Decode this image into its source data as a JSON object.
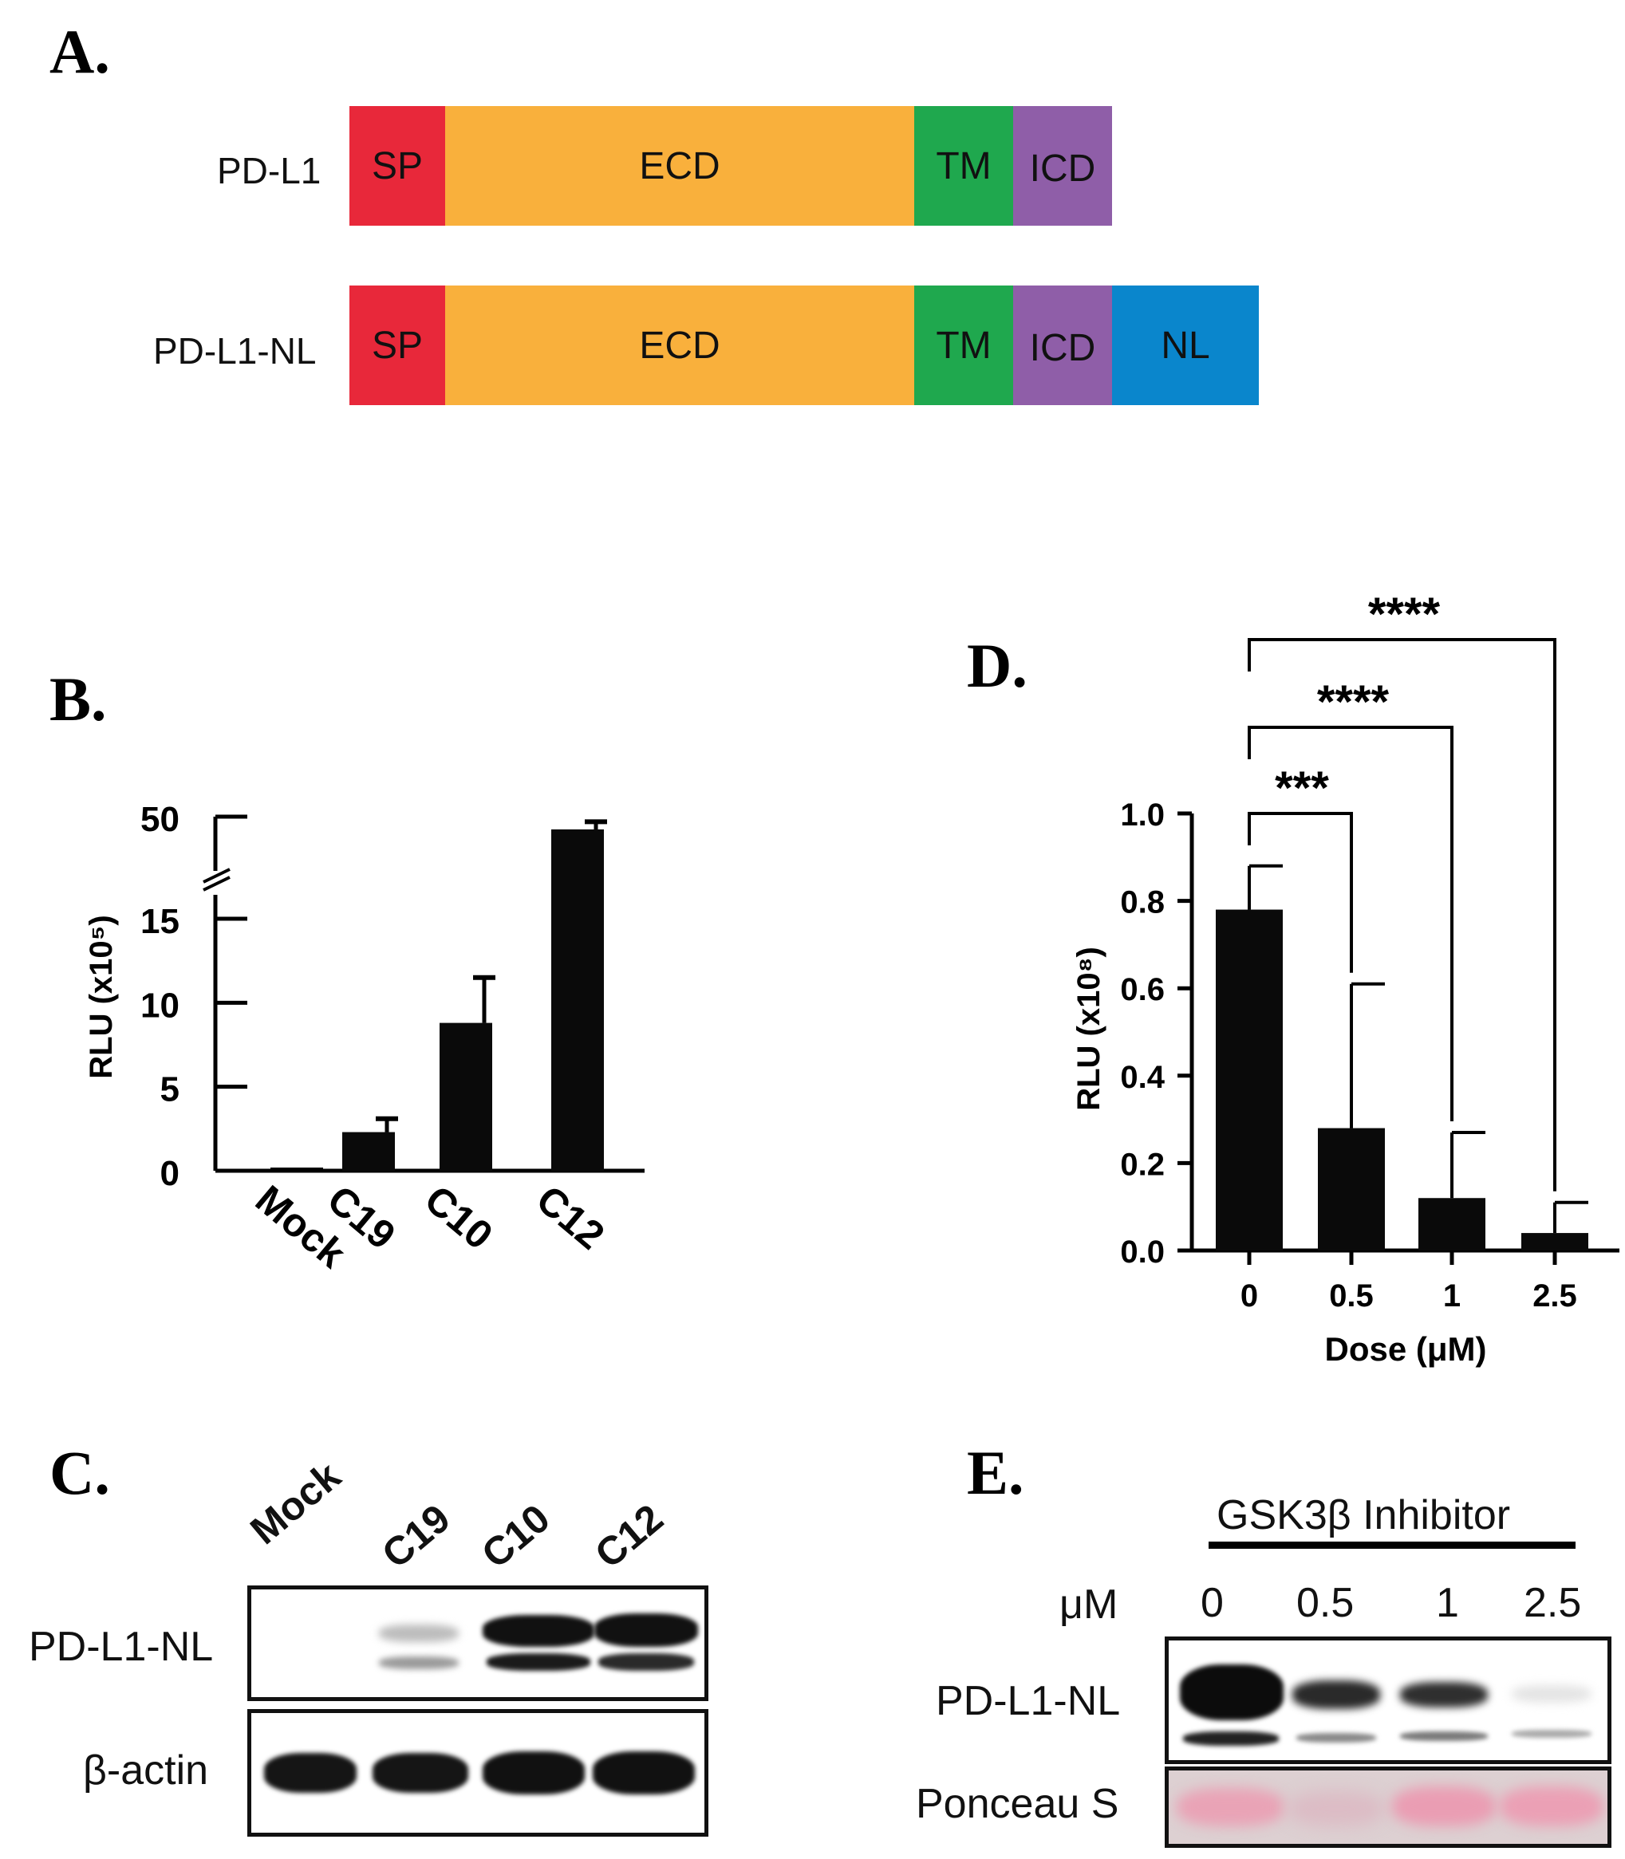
{
  "panels": {
    "a": "A.",
    "b": "B.",
    "c": "C.",
    "d": "D.",
    "e": "E."
  },
  "panel_a": {
    "constructs": [
      {
        "name": "PD-L1",
        "domains": [
          {
            "label": "SP",
            "color": "#e8283a"
          },
          {
            "label": "ECD",
            "color": "#f9b03c"
          },
          {
            "label": "TM",
            "color": "#1fa84e"
          },
          {
            "label": "ICD",
            "color": "#8f5ea8"
          }
        ]
      },
      {
        "name": "PD-L1-NL",
        "domains": [
          {
            "label": "SP",
            "color": "#e8283a"
          },
          {
            "label": "ECD",
            "color": "#f9b03c"
          },
          {
            "label": "TM",
            "color": "#1fa84e"
          },
          {
            "label": "ICD",
            "color": "#8f5ea8"
          },
          {
            "label": "NL",
            "color": "#0a86cc"
          }
        ]
      }
    ]
  },
  "panel_c": {
    "lanes": [
      "Mock",
      "C19",
      "C10",
      "C12"
    ],
    "row_labels": [
      "PD-L1-NL",
      "β-actin"
    ]
  },
  "panel_e": {
    "treatment": "GSK3β Inhibitor",
    "unit": "μM",
    "doses": [
      "0",
      "0.5",
      "1",
      "2.5"
    ],
    "row_labels": [
      "PD-L1-NL",
      "Ponceau S"
    ]
  },
  "chart_data": [
    {
      "type": "bar",
      "categories": [
        "Mock",
        "C19",
        "C10",
        "C12"
      ],
      "values": [
        0.1,
        2.3,
        8.8,
        48
      ],
      "errors": [
        0,
        0.8,
        2.7,
        1.2
      ],
      "ylabel": "RLU (x10⁵)",
      "yticks": [
        "0",
        "5",
        "10",
        "15",
        "50"
      ],
      "axis_break": [
        15,
        50
      ],
      "color": "#0a0a0a"
    },
    {
      "type": "bar",
      "categories": [
        "0",
        "0.5",
        "1",
        "2.5"
      ],
      "values": [
        0.78,
        0.28,
        0.12,
        0.04
      ],
      "errors": [
        0.1,
        0.33,
        0.15,
        0.07
      ],
      "xlabel": "Dose (μM)",
      "ylabel": "RLU (x10⁸)",
      "ylim": [
        0,
        1.0
      ],
      "yticks": [
        "0.0",
        "0.2",
        "0.4",
        "0.6",
        "0.8",
        "1.0"
      ],
      "significance": [
        {
          "from": "0",
          "to": "0.5",
          "label": "***"
        },
        {
          "from": "0",
          "to": "1",
          "label": "****"
        },
        {
          "from": "0",
          "to": "2.5",
          "label": "****"
        }
      ],
      "color": "#0a0a0a"
    }
  ]
}
